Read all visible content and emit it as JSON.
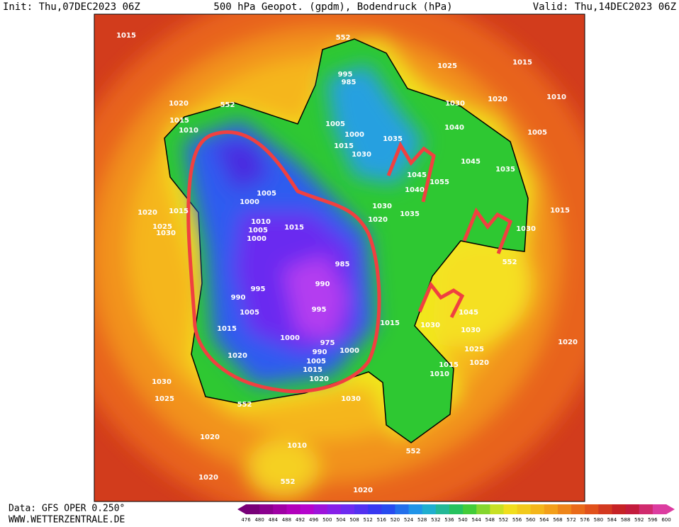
{
  "header": {
    "init": "Init: Thu,07DEC2023 06Z",
    "title": "500 hPa Geopot. (gpdm), Bodendruck (hPa)",
    "valid": "Valid: Thu,14DEC2023 06Z"
  },
  "footer": {
    "data": "Data: GFS OPER 0.250°",
    "site": "WWW.WETTERZENTRALE.DE"
  },
  "colorbar": {
    "labels": [
      476,
      480,
      484,
      488,
      492,
      496,
      500,
      504,
      508,
      512,
      516,
      520,
      524,
      528,
      532,
      536,
      540,
      544,
      548,
      552,
      556,
      560,
      564,
      568,
      572,
      576,
      580,
      584,
      588,
      592,
      596,
      600
    ]
  },
  "map": {
    "labels": [
      "1015",
      "552",
      "1025",
      "1015",
      "995",
      "985",
      "1020",
      "552",
      "1030",
      "1020",
      "1010",
      "1015",
      "1010",
      "1005",
      "1000",
      "1035",
      "1040",
      "1005",
      "1015",
      "1030",
      "1045",
      "1035",
      "1005",
      "1045",
      "1055",
      "1040",
      "1000",
      "1030",
      "1035",
      "1020",
      "1015",
      "1020",
      "1015",
      "1025",
      "1030",
      "1010",
      "1015",
      "1005",
      "1000",
      "1030",
      "552",
      "985",
      "995",
      "990",
      "990",
      "1005",
      "995",
      "1045",
      "1015",
      "1030",
      "1030",
      "1015",
      "1000",
      "975",
      "990",
      "1000",
      "1020",
      "1005",
      "1020",
      "1025",
      "1015",
      "1020",
      "1015",
      "1010",
      "1020",
      "1030",
      "1025",
      "552",
      "1030",
      "1020",
      "1010",
      "552",
      "552",
      "1020",
      "1020"
    ]
  }
}
